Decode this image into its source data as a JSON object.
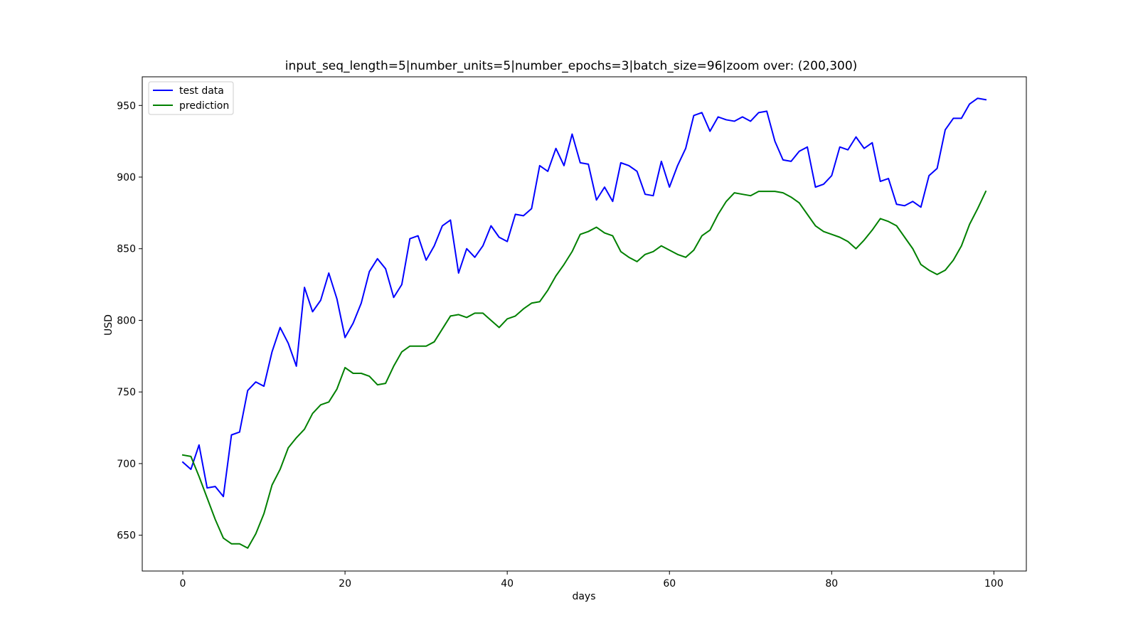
{
  "chart_data": {
    "type": "line",
    "title": "input_seq_length=5|number_units=5|number_epochs=3|batch_size=96|zoom over: (200,300)",
    "xlabel": "days",
    "ylabel": "USD",
    "xlim": [
      -5,
      104
    ],
    "ylim": [
      625,
      970
    ],
    "xticks": [
      0,
      20,
      40,
      60,
      80,
      100
    ],
    "xtick_labels": [
      "0",
      "20",
      "40",
      "60",
      "80",
      "100"
    ],
    "yticks": [
      650,
      700,
      750,
      800,
      850,
      900,
      950
    ],
    "ytick_labels": [
      "650",
      "700",
      "750",
      "800",
      "850",
      "900",
      "950"
    ],
    "grid": false,
    "legend_position": "upper-left",
    "series": [
      {
        "name": "test data",
        "color": "#0000ff",
        "values": [
          701,
          696,
          713,
          683,
          684,
          677,
          720,
          722,
          751,
          757,
          754,
          778,
          795,
          784,
          768,
          823,
          806,
          814,
          833,
          815,
          788,
          798,
          812,
          834,
          843,
          836,
          816,
          825,
          857,
          859,
          842,
          852,
          866,
          870,
          833,
          850,
          844,
          852,
          866,
          858,
          855,
          874,
          873,
          878,
          908,
          904,
          920,
          908,
          930,
          910,
          909,
          884,
          893,
          883,
          910,
          908,
          904,
          888,
          887,
          911,
          893,
          908,
          920,
          943,
          945,
          932,
          942,
          940,
          939,
          942,
          939,
          945,
          946,
          925,
          912,
          911,
          918,
          921,
          893,
          895,
          901,
          921,
          919,
          928,
          920,
          924,
          897,
          899,
          881,
          880,
          883,
          879,
          901,
          906,
          933,
          941,
          941,
          951,
          955,
          954
        ]
      },
      {
        "name": "prediction",
        "color": "#008000",
        "values": [
          706,
          705,
          691,
          676,
          661,
          648,
          644,
          644,
          641,
          651,
          665,
          685,
          696,
          711,
          718,
          724,
          735,
          741,
          743,
          752,
          767,
          763,
          763,
          761,
          755,
          756,
          768,
          778,
          782,
          782,
          782,
          785,
          794,
          803,
          804,
          802,
          805,
          805,
          800,
          795,
          801,
          803,
          808,
          812,
          813,
          821,
          831,
          839,
          848,
          860,
          862,
          865,
          861,
          859,
          848,
          844,
          841,
          846,
          848,
          852,
          849,
          846,
          844,
          849,
          859,
          863,
          874,
          883,
          889,
          888,
          887,
          890,
          890,
          890,
          889,
          886,
          882,
          874,
          866,
          862,
          860,
          858,
          855,
          850,
          856,
          863,
          871,
          869,
          866,
          858,
          850,
          839,
          835,
          832,
          835,
          842,
          852,
          867,
          878,
          890
        ]
      }
    ]
  }
}
